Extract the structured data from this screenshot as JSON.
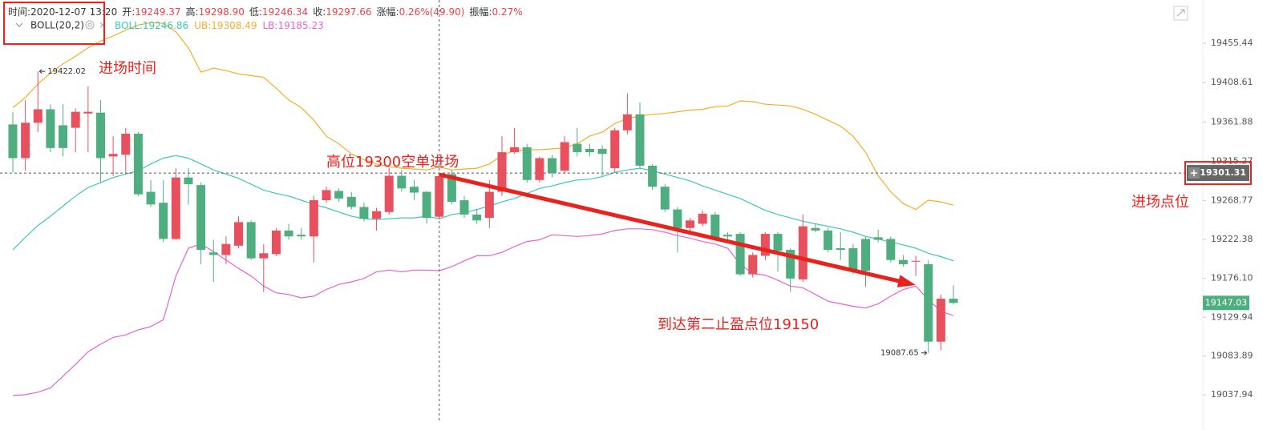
{
  "chart_data": {
    "type": "candlestick",
    "header": {
      "separator": ":",
      "items": [
        {
          "label": "时间",
          "value": "2020-12-07 13:20"
        },
        {
          "label": "开",
          "value": "19249.37"
        },
        {
          "label": "高",
          "value": "19298.90"
        },
        {
          "label": "低",
          "value": "19246.34"
        },
        {
          "label": "收",
          "value": "19297.66"
        },
        {
          "label": "涨幅",
          "value": "0.26%(49.90)"
        },
        {
          "label": "振幅",
          "value": "0.27%"
        }
      ]
    },
    "indicator": "BOLL(20,2)",
    "up_color": "#e8505d",
    "down_color": "#4fae7f",
    "open": [
      19359,
      19319,
      19361,
      19377,
      19358,
      19355,
      19372,
      19373,
      19321,
      19323,
      19348,
      19279,
      19266,
      19223,
      19296,
      19287,
      19207,
      19204,
      19215,
      19243,
      19200,
      19205,
      19233,
      19228,
      19226,
      19269,
      19280,
      19273,
      19261,
      19247,
      19255,
      19298,
      19285,
      19279,
      19249.37,
      19300,
      19269,
      19252,
      19248,
      19279,
      19326,
      19332,
      19293,
      19319,
      19304,
      19336,
      19330,
      19330,
      19307,
      19352,
      19371,
      19310,
      19285,
      19258,
      19236,
      19241,
      19252,
      19228,
      19229,
      19181,
      19203,
      19229,
      19210,
      19175,
      19236,
      19233,
      19212,
      19212,
      19223,
      19225,
      19223,
      19198,
      19196,
      19193,
      19101,
      19152
    ],
    "high": [
      19374,
      19388,
      19422.02,
      19383,
      19383,
      19378,
      19404,
      19388,
      19345,
      19355,
      19350,
      19293,
      19293,
      19307,
      19307,
      19290,
      19222,
      19226,
      19250,
      19245,
      19217,
      19236,
      19241,
      19236,
      19274,
      19285,
      19283,
      19279,
      19266,
      19260,
      19307,
      19305,
      19293,
      19280,
      19298.9,
      19305,
      19274,
      19258,
      19293,
      19345,
      19355,
      19336,
      19321,
      19323,
      19345,
      19355,
      19336,
      19334,
      19355,
      19396,
      19385,
      19312,
      19288,
      19261,
      19248,
      19257,
      19255,
      19231,
      19231,
      19207,
      19231,
      19231,
      19212,
      19252,
      19241,
      19236,
      19231,
      19217,
      19226,
      19234,
      19226,
      19204,
      19203,
      19198,
      19157,
      19168
    ],
    "low": [
      19302,
      19304,
      19350,
      19326,
      19321,
      19326,
      19326,
      19290,
      19298,
      19302,
      19274,
      19261,
      19219,
      19222,
      19264,
      19193,
      19172,
      19193,
      19212,
      19198,
      19160,
      19203,
      19222,
      19222,
      19195,
      19266,
      19267,
      19258,
      19244,
      19233,
      19252,
      19279,
      19269,
      19241,
      19246.34,
      19264,
      19248,
      19241,
      19236,
      19274,
      19324,
      19290,
      19290,
      19296,
      19301,
      19321,
      19321,
      19298,
      19302,
      19347,
      19307,
      19281,
      19255,
      19207,
      19231,
      19238,
      19222,
      19222,
      19179,
      19177,
      19198,
      19184,
      19160,
      19172,
      19231,
      19207,
      19198,
      19181,
      19166,
      19219,
      19195,
      19190,
      19179,
      19087.65,
      19091,
      19145
    ],
    "close": [
      19319,
      19361,
      19377,
      19331,
      19331,
      19374,
      19374,
      19319,
      19324,
      19348,
      19276,
      19264,
      19223,
      19296,
      19288,
      19210,
      19204,
      19217,
      19243,
      19200,
      19206,
      19233,
      19226,
      19226,
      19269,
      19281,
      19271,
      19261,
      19247,
      19256,
      19298,
      19283,
      19278,
      19248,
      19297.66,
      19267,
      19252,
      19245,
      19279,
      19326,
      19332,
      19293,
      19319,
      19301,
      19338,
      19326,
      19326,
      19324,
      19352,
      19371,
      19310,
      19285,
      19258,
      19236,
      19245,
      19253,
      19223,
      19226,
      19181,
      19204,
      19229,
      19209,
      19176,
      19238,
      19233,
      19210,
      19210,
      19185,
      19185,
      19222,
      19198,
      19193,
      19197,
      19101,
      19152,
      19147.03
    ],
    "series": [
      {
        "name": "BOLL",
        "color": "#3cc8b4",
        "values": [
          19210,
          19225,
          19239,
          19250,
          19262,
          19274,
          19284,
          19290,
          19296,
          19300,
          19304,
          19312,
          19319,
          19322,
          19319,
          19312,
          19305,
          19300,
          19295,
          19288,
          19281,
          19277,
          19274,
          19269,
          19264,
          19260,
          19255,
          19250,
          19247,
          19246,
          19247,
          19248,
          19248,
          19250,
          19246.86,
          19252,
          19254,
          19258,
          19262,
          19267,
          19271,
          19277,
          19283,
          19286,
          19290,
          19293,
          19294,
          19297,
          19302,
          19305,
          19307,
          19304,
          19300,
          19296,
          19292,
          19286,
          19281,
          19276,
          19271,
          19264,
          19257,
          19252,
          19248,
          19244,
          19241,
          19238,
          19235,
          19231,
          19226,
          19223,
          19219,
          19216,
          19212,
          19206,
          19202,
          19197
        ]
      },
      {
        "name": "UB",
        "color": "#f5ad2b",
        "values": [
          19379,
          19391,
          19407,
          19420,
          19431,
          19440,
          19450,
          19458,
          19464,
          19471,
          19477,
          19480,
          19479,
          19469,
          19450,
          19421,
          19426,
          19423,
          19419,
          19417,
          19415,
          19402,
          19388,
          19379,
          19364,
          19345,
          19336,
          19324,
          19317,
          19312,
          19309,
          19307,
          19306,
          19305,
          19308.49,
          19305,
          19306,
          19307,
          19312,
          19322,
          19328,
          19329,
          19329,
          19330,
          19331,
          19336,
          19345,
          19350,
          19360,
          19366,
          19369,
          19371,
          19372,
          19374,
          19376,
          19377,
          19380,
          19381,
          19387,
          19386,
          19383,
          19382,
          19381,
          19377,
          19371,
          19364,
          19357,
          19345,
          19326,
          19298,
          19279,
          19265,
          19258,
          19269,
          19267,
          19263
        ]
      },
      {
        "name": "LB",
        "color": "#e463d4",
        "values": [
          19037,
          19038,
          19041,
          19046,
          19060,
          19074,
          19089,
          19098,
          19106,
          19109,
          19115,
          19119,
          19127,
          19179,
          19212,
          19217,
          19208,
          19198,
          19188,
          19179,
          19167,
          19159,
          19157,
          19153,
          19155,
          19163,
          19169,
          19172,
          19176,
          19184,
          19186,
          19184,
          19186,
          19186,
          19185.23,
          19190,
          19197,
          19203,
          19203,
          19207,
          19214,
          19220,
          19222,
          19228,
          19227,
          19226,
          19227,
          19229,
          19233,
          19235,
          19235,
          19234,
          19231,
          19227,
          19224,
          19220,
          19217,
          19212,
          19193,
          19182,
          19180,
          19174,
          19167,
          19165,
          19157,
          19149,
          19146,
          19143,
          19141,
          19146,
          19155,
          19163,
          19167,
          19151,
          19137,
          19132
        ]
      }
    ],
    "ylim": [
      19007.5,
      19506.8
    ],
    "yticks": [
      19037.94,
      19083.89,
      19129.94,
      {
        "value": 19176.1,
        "label": "19176.10"
      },
      19222.38,
      19268.77,
      19315.27,
      19361.88,
      19408.61,
      19455.44
    ],
    "crosshair_price": 19301.31,
    "annotations": [
      "进场时间",
      "高位19300空单进场",
      "进场点位",
      "到达第二止盈点位19150"
    ]
  }
}
